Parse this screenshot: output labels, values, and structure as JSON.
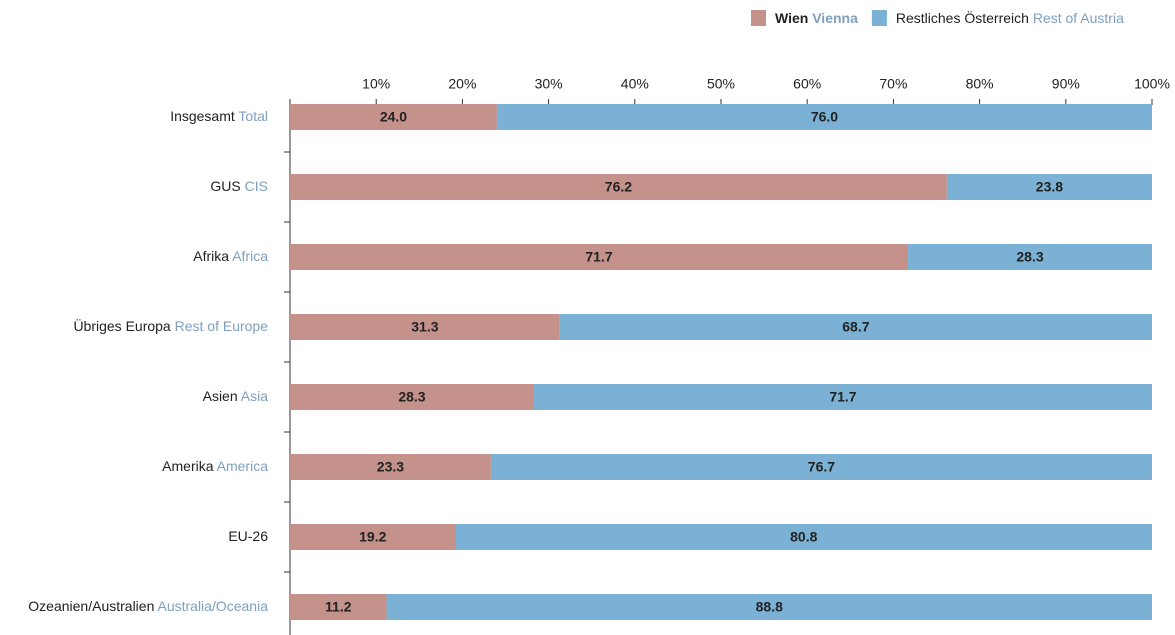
{
  "chart_data": {
    "type": "stacked_bar_horizontal",
    "categories": [
      {
        "de": "Insgesamt",
        "en": "Total"
      },
      {
        "de": "GUS",
        "en": "CIS"
      },
      {
        "de": "Afrika",
        "en": "Africa"
      },
      {
        "de": "Übriges Europa",
        "en": "Rest of Europe"
      },
      {
        "de": "Asien",
        "en": "Asia"
      },
      {
        "de": "Amerika",
        "en": "America"
      },
      {
        "de": "EU-26"
      },
      {
        "de": "Ozeanien/Australien",
        "en": "Australia/Oceania"
      }
    ],
    "series": [
      {
        "name": {
          "de": "Wien",
          "en": "Vienna"
        },
        "color": "#c4918b",
        "values": [
          24.0,
          76.2,
          71.7,
          31.3,
          28.3,
          23.3,
          19.2,
          11.2
        ],
        "value_labels": [
          "24.0",
          "76.2",
          "71.7",
          "31.3",
          "28.3",
          "23.3",
          "19.2",
          "11.2"
        ]
      },
      {
        "name": {
          "de": "Restliches Österreich",
          "en": "Rest of Austria"
        },
        "color": "#7bb1d4",
        "values": [
          76.0,
          23.8,
          28.3,
          68.7,
          71.7,
          76.7,
          80.8,
          88.8
        ],
        "value_labels": [
          "76.0",
          "23.8",
          "28.3",
          "68.7",
          "71.7",
          "76.7",
          "80.8",
          "88.8"
        ]
      }
    ],
    "xlim": [
      0,
      100
    ],
    "xticks": [
      {
        "value": 10,
        "label": "10%"
      },
      {
        "value": 20,
        "label": "20%"
      },
      {
        "value": 30,
        "label": "30%"
      },
      {
        "value": 40,
        "label": "40%"
      },
      {
        "value": 50,
        "label": "50%"
      },
      {
        "value": 60,
        "label": "60%"
      },
      {
        "value": 70,
        "label": "70%"
      },
      {
        "value": 80,
        "label": "80%"
      },
      {
        "value": 90,
        "label": "90%"
      },
      {
        "value": 100,
        "label": "100%"
      }
    ],
    "legend": "top-right"
  }
}
